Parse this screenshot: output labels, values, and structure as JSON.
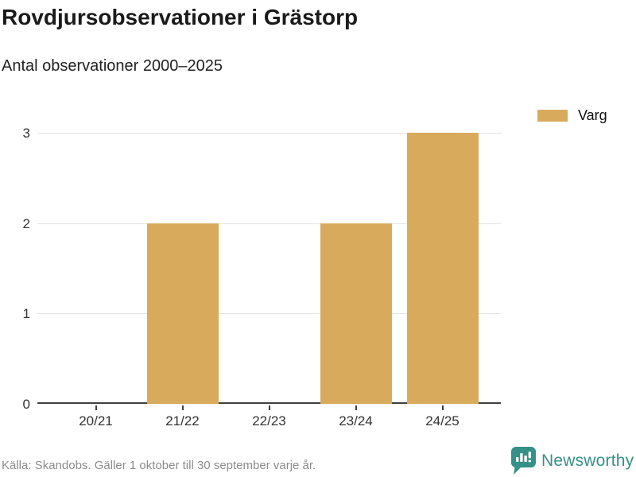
{
  "header": {
    "title": "Rovdjursobservationer i Grästorp",
    "subtitle": "Antal observationer 2000–2025"
  },
  "legend": {
    "label": "Varg",
    "color": "#D8AB5C"
  },
  "chart_data": {
    "type": "bar",
    "categories": [
      "20/21",
      "21/22",
      "22/23",
      "23/24",
      "24/25"
    ],
    "series": [
      {
        "name": "Varg",
        "values": [
          0,
          2,
          0,
          2,
          3
        ]
      }
    ],
    "title": "Rovdjursobservationer i Grästorp",
    "subtitle": "Antal observationer 2000–2025",
    "xlabel": "",
    "ylabel": "",
    "ylim": [
      0,
      3
    ],
    "yticks": [
      0,
      1,
      2,
      3
    ],
    "grid": true,
    "legend_position": "top-right",
    "bar_color": "#D8AB5C",
    "gridline_color": "#e2e2e2",
    "axis_color": "#404040"
  },
  "footer": {
    "source": "Källa: Skandobs. Gäller 1 oktober till 30 september varje år.",
    "brand": "Newsworthy",
    "brand_color": "#359187"
  }
}
